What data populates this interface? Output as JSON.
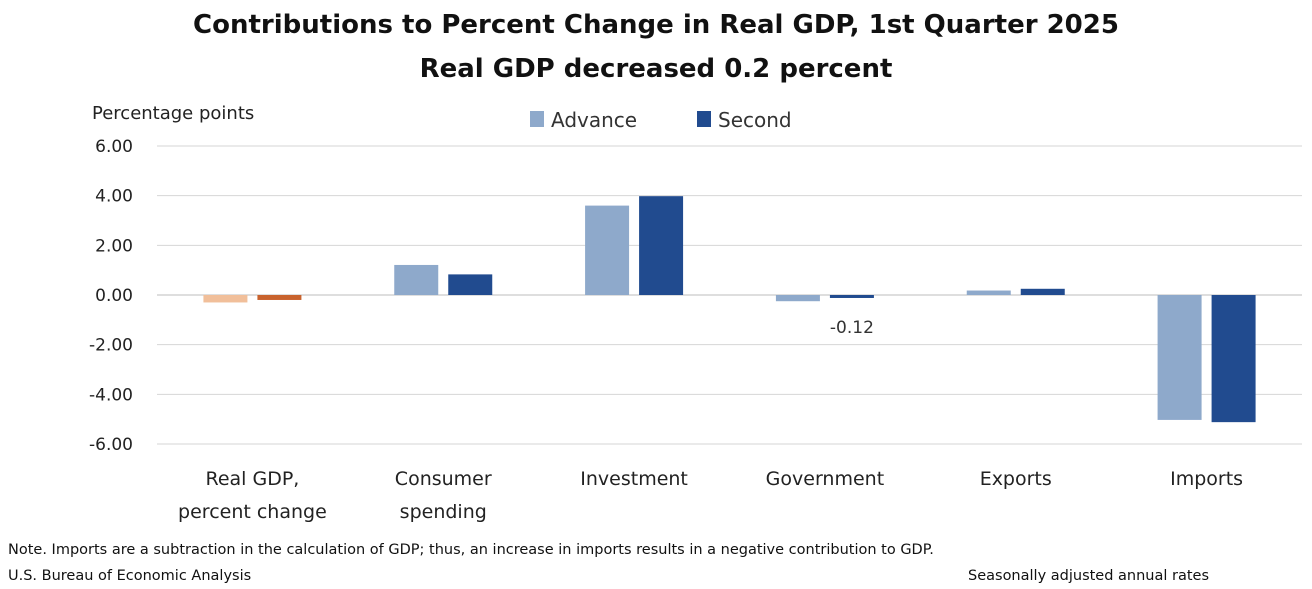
{
  "chart_data": {
    "type": "bar",
    "title": "Contributions to Percent Change in Real GDP, 1st Quarter 2025",
    "subtitle": "Real GDP decreased 0.2 percent",
    "ylabel": "Percentage points",
    "ylim": [
      -6,
      6
    ],
    "yticks": [
      "6.00",
      "4.00",
      "2.00",
      "0.00",
      "-2.00",
      "-4.00",
      "-6.00"
    ],
    "legend_position": "top-center",
    "categories": [
      [
        "Real GDP,",
        "percent change"
      ],
      [
        "Consumer",
        "spending"
      ],
      [
        "Investment"
      ],
      [
        "Government"
      ],
      [
        "Exports"
      ],
      [
        "Imports"
      ]
    ],
    "series": [
      {
        "name": "Advance",
        "color": "#8ea9cb",
        "values": [
          -0.3,
          1.21,
          3.6,
          -0.25,
          0.18,
          -5.03
        ]
      },
      {
        "name": "Second",
        "color": "#214b8f",
        "values": [
          -0.2,
          0.83,
          3.98,
          -0.12,
          0.25,
          -5.12
        ]
      }
    ],
    "highlight_colors": {
      "Advance": "#f1bf9a",
      "Second": "#c8622d"
    },
    "data_labels": [
      {
        "category_index": 3,
        "series": "Second",
        "text": "-0.12"
      }
    ],
    "grid": true
  },
  "footer": {
    "note": "Note. Imports are a subtraction in the calculation of GDP; thus, an increase in imports results in a negative contribution to GDP.",
    "source": "U.S. Bureau of Economic Analysis",
    "rates": "Seasonally adjusted annual rates"
  }
}
